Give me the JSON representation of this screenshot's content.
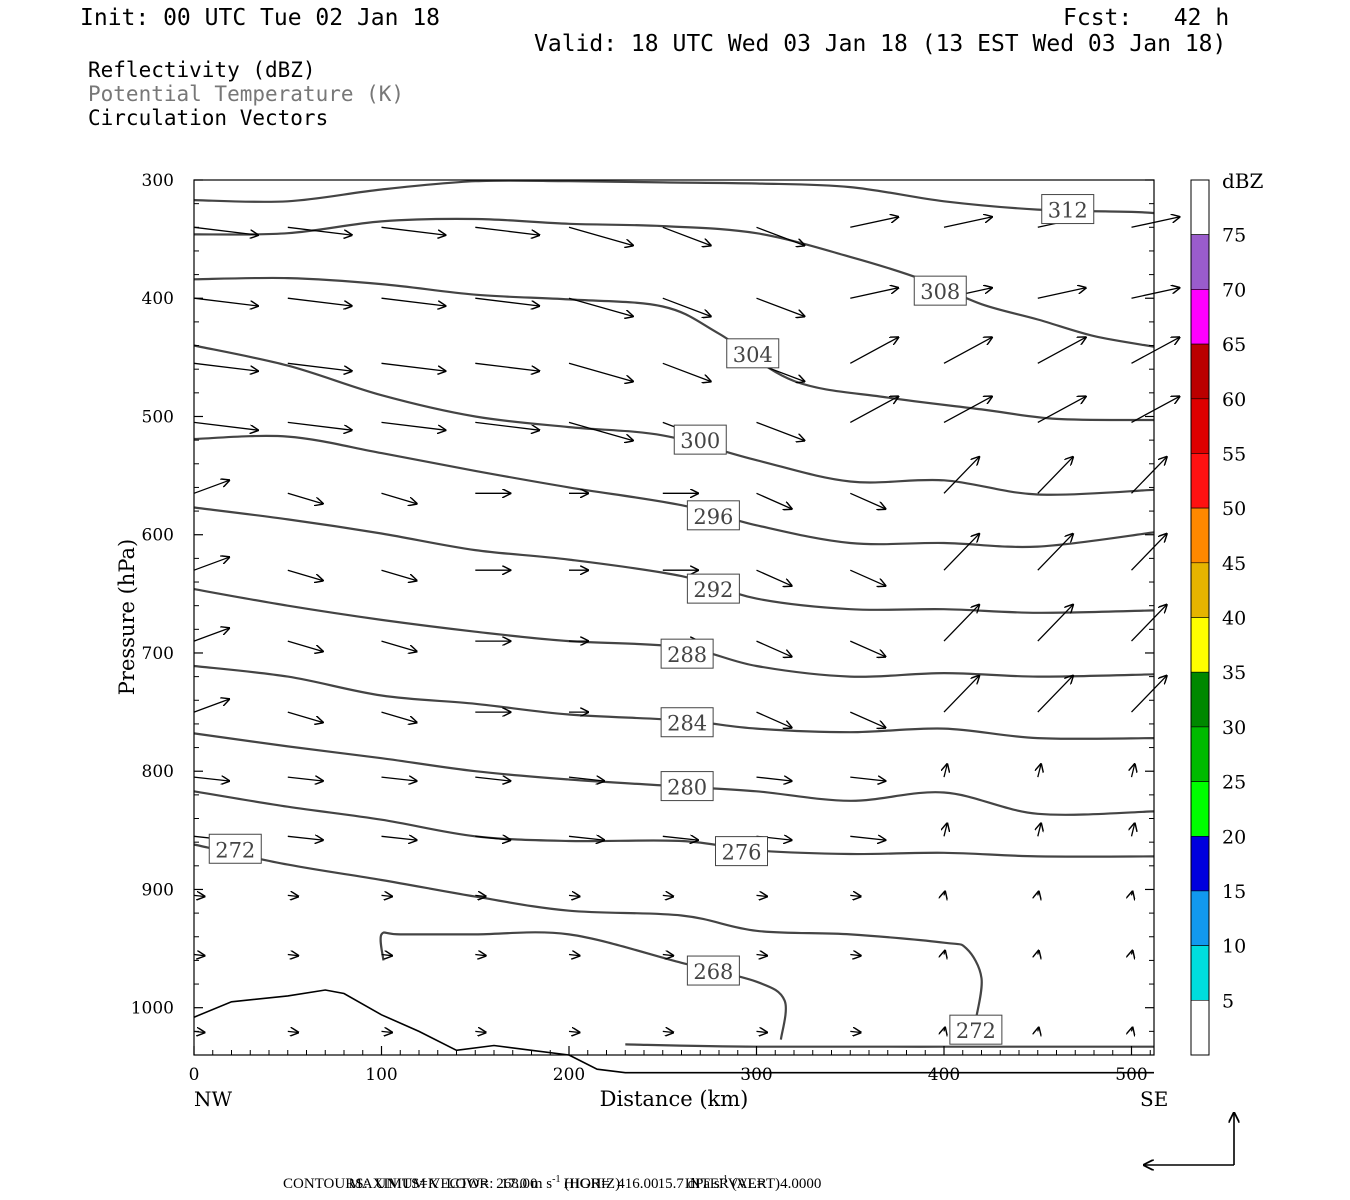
{
  "header": {
    "init": "Init: 00 UTC Tue 02 Jan 18",
    "fcst": "Fcst:   42 h",
    "valid": "Valid: 18 UTC Wed 03 Jan 18 (13 EST Wed 03 Jan 18)"
  },
  "legend": {
    "line1": "Reflectivity (dBZ)",
    "line2": "Potential Temperature (K)",
    "line3": "Circulation Vectors"
  },
  "footer": {
    "maxvec_label": "MAXIMUM VECTOR:",
    "maxvec_h": "17.0 m s",
    "maxvec_h_unit": "(HORIZ)",
    "maxvec_v": "15.7 dPa s",
    "maxvec_v_unit": "(VERT)",
    "exp": "-1",
    "contours": "CONTOURS:  UNITS=K  LOW=  268.00       HIGH=  416.00       INTERVAL=    4.0000"
  },
  "chart_data": {
    "type": "contour",
    "xlabel": "Distance (km)",
    "ylabel": "Pressure (hPa)",
    "xlim": [
      0,
      512
    ],
    "ylim": [
      1040,
      300
    ],
    "x_ticks": [
      0,
      100,
      200,
      300,
      400,
      500
    ],
    "y_ticks": [
      300,
      400,
      500,
      600,
      700,
      800,
      900,
      1000
    ],
    "x_end_labels": {
      "left": "NW",
      "right": "SE"
    },
    "colorbar": {
      "title": "dBZ",
      "labels": [
        "75",
        "70",
        "65",
        "60",
        "55",
        "50",
        "45",
        "40",
        "35",
        "30",
        "25",
        "20",
        "15",
        "10",
        "5"
      ],
      "colors": [
        "#9a5ccc",
        "#ff00ff",
        "#bb0000",
        "#dd0000",
        "#ff1111",
        "#ff8800",
        "#e6b400",
        "#ffff00",
        "#008800",
        "#00bb00",
        "#00ff00",
        "#0000dd",
        "#1199ee",
        "#00dddd",
        "#ffffff"
      ]
    },
    "contours": [
      {
        "label": "312",
        "label_at": [
          466,
          325
        ],
        "points": [
          [
            0,
            317
          ],
          [
            50,
            318
          ],
          [
            100,
            308
          ],
          [
            150,
            301
          ],
          [
            200,
            301
          ],
          [
            250,
            302
          ],
          [
            300,
            303
          ],
          [
            350,
            306
          ],
          [
            400,
            318
          ],
          [
            450,
            325
          ],
          [
            500,
            327
          ],
          [
            512,
            328
          ]
        ]
      },
      {
        "label": "308",
        "label_at": [
          398,
          394
        ],
        "points": [
          [
            0,
            346
          ],
          [
            50,
            345
          ],
          [
            100,
            335
          ],
          [
            150,
            333
          ],
          [
            200,
            337
          ],
          [
            250,
            339
          ],
          [
            300,
            345
          ],
          [
            350,
            365
          ],
          [
            390,
            385
          ],
          [
            420,
            405
          ],
          [
            450,
            418
          ],
          [
            480,
            432
          ],
          [
            512,
            441
          ]
        ]
      },
      {
        "label": "304",
        "label_at": [
          298,
          447
        ],
        "points": [
          [
            0,
            384
          ],
          [
            50,
            383
          ],
          [
            100,
            388
          ],
          [
            150,
            397
          ],
          [
            200,
            401
          ],
          [
            250,
            407
          ],
          [
            280,
            430
          ],
          [
            320,
            470
          ],
          [
            370,
            484
          ],
          [
            420,
            494
          ],
          [
            460,
            502
          ],
          [
            512,
            503
          ]
        ]
      },
      {
        "label": "300",
        "label_at": [
          270,
          520
        ],
        "points": [
          [
            0,
            440
          ],
          [
            50,
            457
          ],
          [
            100,
            482
          ],
          [
            150,
            500
          ],
          [
            200,
            509
          ],
          [
            250,
            516
          ],
          [
            300,
            537
          ],
          [
            350,
            555
          ],
          [
            400,
            554
          ],
          [
            450,
            566
          ],
          [
            512,
            562
          ]
        ]
      },
      {
        "label": "296",
        "label_at": [
          277,
          584
        ],
        "points": [
          [
            0,
            519
          ],
          [
            50,
            517
          ],
          [
            100,
            531
          ],
          [
            150,
            546
          ],
          [
            200,
            560
          ],
          [
            260,
            575
          ],
          [
            300,
            592
          ],
          [
            350,
            607
          ],
          [
            400,
            607
          ],
          [
            450,
            610
          ],
          [
            512,
            598
          ]
        ]
      },
      {
        "label": "292",
        "label_at": [
          277,
          646
        ],
        "points": [
          [
            0,
            577
          ],
          [
            50,
            587
          ],
          [
            100,
            599
          ],
          [
            150,
            613
          ],
          [
            200,
            621
          ],
          [
            260,
            635
          ],
          [
            300,
            654
          ],
          [
            350,
            663
          ],
          [
            400,
            663
          ],
          [
            450,
            666
          ],
          [
            512,
            664
          ]
        ]
      },
      {
        "label": "288",
        "label_at": [
          263,
          701
        ],
        "points": [
          [
            0,
            646
          ],
          [
            50,
            660
          ],
          [
            100,
            672
          ],
          [
            150,
            682
          ],
          [
            200,
            690
          ],
          [
            260,
            695
          ],
          [
            300,
            711
          ],
          [
            350,
            720
          ],
          [
            400,
            717
          ],
          [
            450,
            720
          ],
          [
            512,
            718
          ]
        ]
      },
      {
        "label": "284",
        "label_at": [
          263,
          759
        ],
        "points": [
          [
            0,
            711
          ],
          [
            50,
            720
          ],
          [
            100,
            736
          ],
          [
            150,
            743
          ],
          [
            200,
            752
          ],
          [
            260,
            757
          ],
          [
            300,
            764
          ],
          [
            350,
            767
          ],
          [
            400,
            764
          ],
          [
            450,
            772
          ],
          [
            512,
            772
          ]
        ]
      },
      {
        "label": "280",
        "label_at": [
          263,
          813
        ],
        "points": [
          [
            0,
            768
          ],
          [
            50,
            779
          ],
          [
            100,
            789
          ],
          [
            150,
            800
          ],
          [
            200,
            807
          ],
          [
            260,
            813
          ],
          [
            300,
            817
          ],
          [
            350,
            825
          ],
          [
            400,
            818
          ],
          [
            450,
            836
          ],
          [
            512,
            834
          ]
        ]
      },
      {
        "label": "276",
        "label_at": [
          292,
          868
        ],
        "points": [
          [
            0,
            817
          ],
          [
            50,
            830
          ],
          [
            100,
            841
          ],
          [
            150,
            855
          ],
          [
            200,
            859
          ],
          [
            260,
            859
          ],
          [
            300,
            867
          ],
          [
            350,
            870
          ],
          [
            400,
            869
          ],
          [
            450,
            872
          ],
          [
            512,
            872
          ]
        ]
      },
      {
        "label": "272",
        "label_at": [
          22,
          866
        ],
        "points": [
          [
            0,
            862
          ],
          [
            50,
            879
          ],
          [
            100,
            892
          ],
          [
            150,
            906
          ],
          [
            200,
            918
          ],
          [
            260,
            922
          ],
          [
            300,
            935
          ],
          [
            350,
            938
          ],
          [
            400,
            945
          ],
          [
            412,
            950
          ],
          [
            420,
            975
          ],
          [
            417,
            1010
          ]
        ]
      },
      {
        "label": "268",
        "label_at": [
          277,
          969
        ],
        "points": [
          [
            101,
            960
          ],
          [
            100,
            938
          ],
          [
            110,
            938
          ],
          [
            150,
            938
          ],
          [
            200,
            938
          ],
          [
            260,
            962
          ],
          [
            300,
            978
          ],
          [
            315,
            994
          ],
          [
            313,
            1027
          ]
        ]
      },
      {
        "label": "272",
        "label_at": [
          417,
          1019
        ],
        "points": [
          [
            230,
            1031
          ],
          [
            300,
            1033
          ],
          [
            400,
            1033
          ],
          [
            512,
            1033
          ]
        ]
      }
    ],
    "vectors_note": "circulation vectors drawn across the section"
  }
}
